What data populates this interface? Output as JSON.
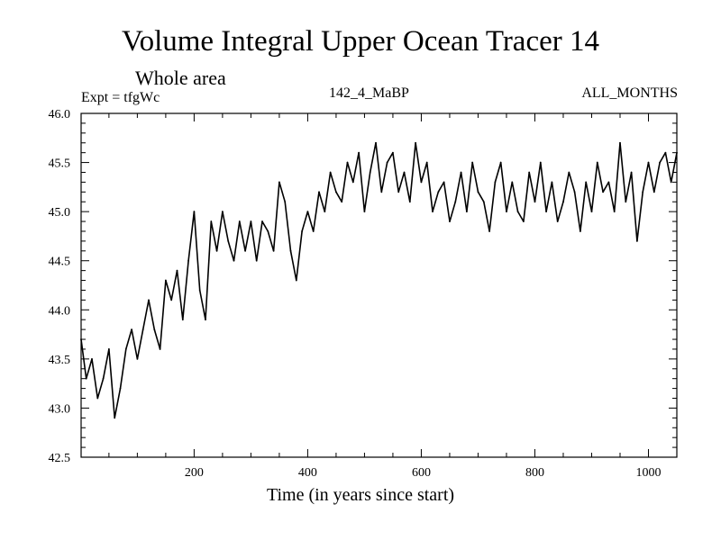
{
  "chart_data": {
    "type": "line",
    "title": "Volume Integral Upper Ocean Tracer 14",
    "subtitle": "Whole area",
    "expt_label": "Expt = tfgWc",
    "run_label": "142_4_MaBP",
    "months_label": "ALL_MONTHS",
    "xlabel": "Time (in years since start)",
    "ylabel": "",
    "xlim": [
      1,
      1050
    ],
    "ylim": [
      42.5,
      46.0
    ],
    "xticks": [
      200,
      400,
      600,
      800,
      1000
    ],
    "yticks": [
      42.5,
      43.0,
      43.5,
      44.0,
      44.5,
      45.0,
      45.5,
      46.0
    ],
    "ytick_labels": [
      "42.5",
      "43.0",
      "43.5",
      "44.0",
      "44.5",
      "45.0",
      "45.5",
      "46.0"
    ],
    "series": [
      {
        "name": "Tracer 14",
        "color": "#000000",
        "x": [
          1,
          10,
          20,
          30,
          40,
          50,
          60,
          70,
          80,
          90,
          100,
          110,
          120,
          130,
          140,
          150,
          160,
          170,
          180,
          190,
          200,
          210,
          220,
          230,
          240,
          250,
          260,
          270,
          280,
          290,
          300,
          310,
          320,
          330,
          340,
          350,
          360,
          370,
          380,
          390,
          400,
          410,
          420,
          430,
          440,
          450,
          460,
          470,
          480,
          490,
          500,
          510,
          520,
          530,
          540,
          550,
          560,
          570,
          580,
          590,
          600,
          610,
          620,
          630,
          640,
          650,
          660,
          670,
          680,
          690,
          700,
          710,
          720,
          730,
          740,
          750,
          760,
          770,
          780,
          790,
          800,
          810,
          820,
          830,
          840,
          850,
          860,
          870,
          880,
          890,
          900,
          910,
          920,
          930,
          940,
          950,
          960,
          970,
          980,
          990,
          1000,
          1010,
          1020,
          1030,
          1040,
          1050
        ],
        "y": [
          43.7,
          43.3,
          43.5,
          43.1,
          43.3,
          43.6,
          42.9,
          43.2,
          43.6,
          43.8,
          43.5,
          43.8,
          44.1,
          43.8,
          43.6,
          44.3,
          44.1,
          44.4,
          43.9,
          44.5,
          45.0,
          44.2,
          43.9,
          44.9,
          44.6,
          45.0,
          44.7,
          44.5,
          44.9,
          44.6,
          44.9,
          44.5,
          44.9,
          44.8,
          44.6,
          45.3,
          45.1,
          44.6,
          44.3,
          44.8,
          45.0,
          44.8,
          45.2,
          45.0,
          45.4,
          45.2,
          45.1,
          45.5,
          45.3,
          45.6,
          45.0,
          45.4,
          45.7,
          45.2,
          45.5,
          45.6,
          45.2,
          45.4,
          45.1,
          45.7,
          45.3,
          45.5,
          45.0,
          45.2,
          45.3,
          44.9,
          45.1,
          45.4,
          45.0,
          45.5,
          45.2,
          45.1,
          44.8,
          45.3,
          45.5,
          45.0,
          45.3,
          45.0,
          44.9,
          45.4,
          45.1,
          45.5,
          45.0,
          45.3,
          44.9,
          45.1,
          45.4,
          45.2,
          44.8,
          45.3,
          45.0,
          45.5,
          45.2,
          45.3,
          45.0,
          45.7,
          45.1,
          45.4,
          44.7,
          45.2,
          45.5,
          45.2,
          45.5,
          45.6,
          45.3,
          45.6
        ]
      }
    ]
  }
}
